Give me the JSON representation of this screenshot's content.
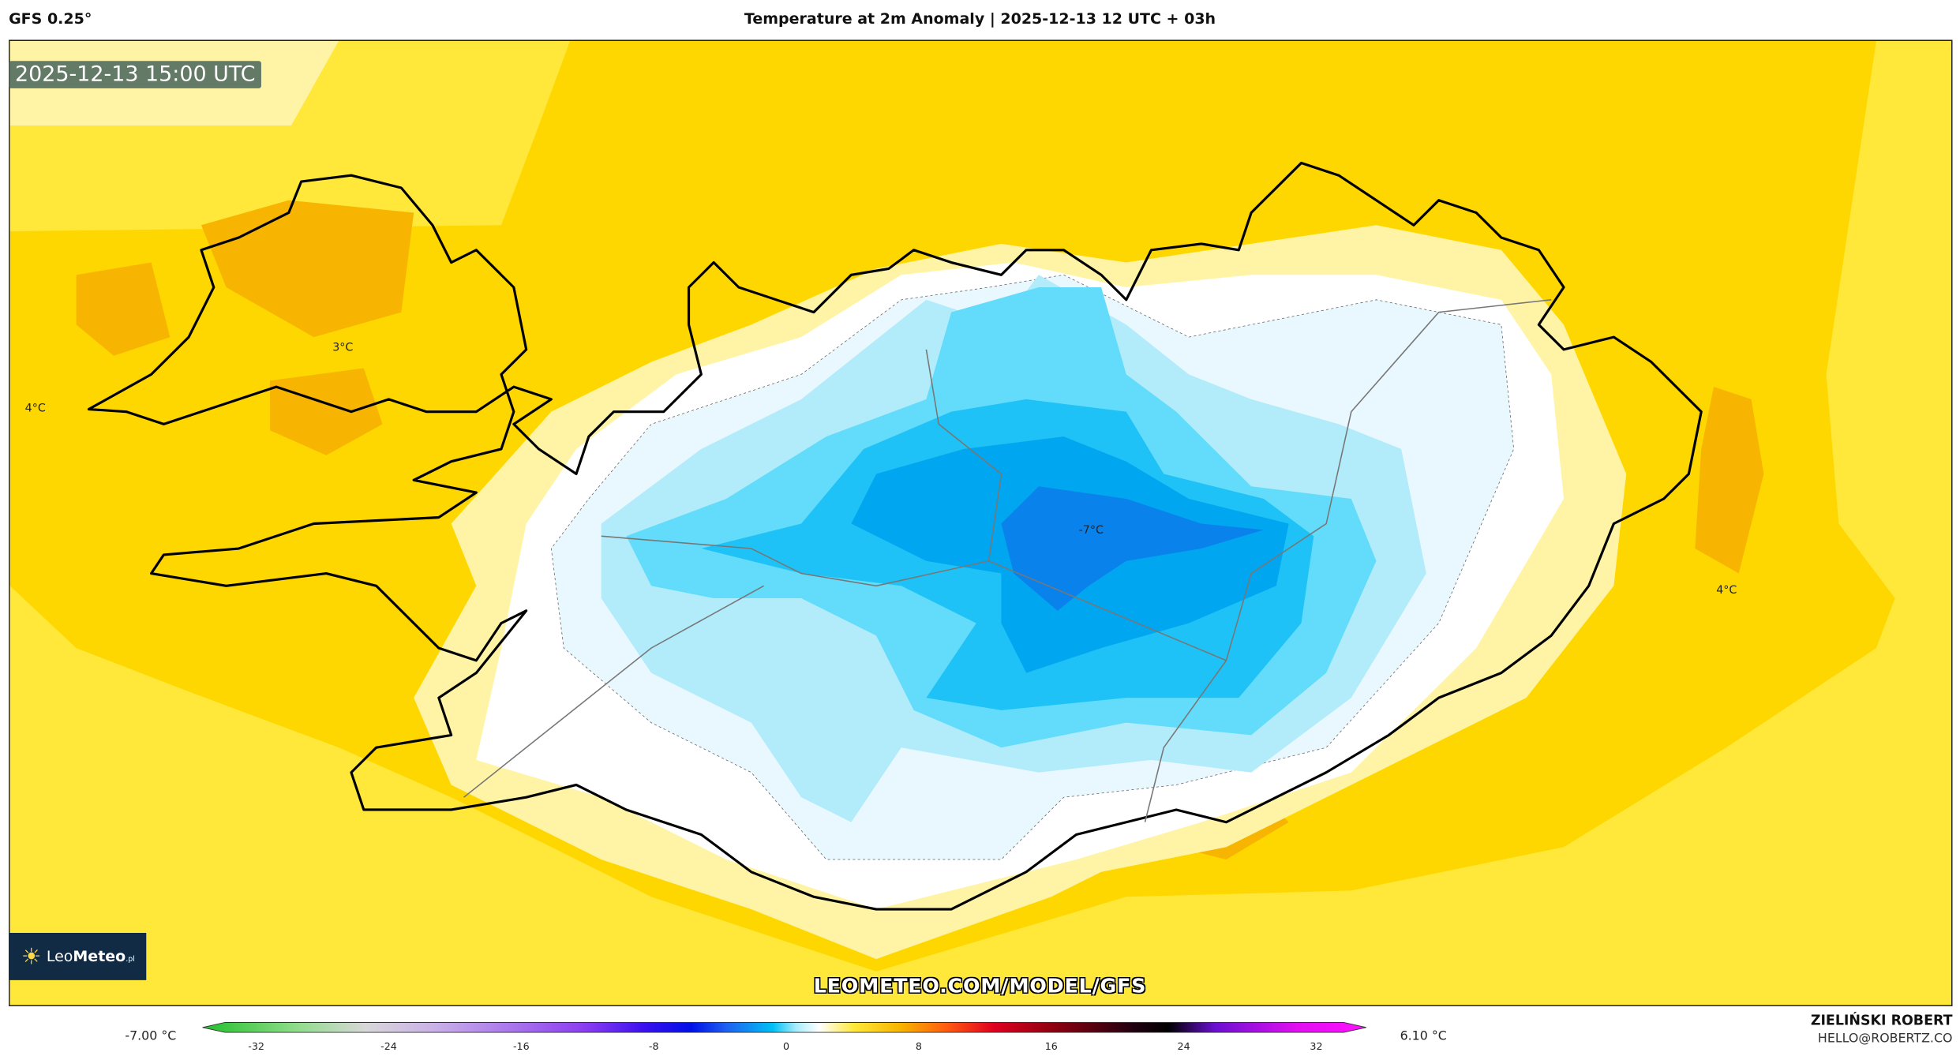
{
  "header": {
    "model": "GFS 0.25°",
    "title": "Temperature at 2m Anomaly | 2025-12-13 12 UTC + 03h"
  },
  "map": {
    "valid_time": "2025-12-13 15:00 UTC",
    "watermark": "LEOMETEO.COM/MODEL/GFS",
    "labels": [
      "3°C",
      "4°C",
      "-7°C",
      "4°C"
    ],
    "colors": {
      "deep_yellow": "#ffd700",
      "yellow": "#ffe83a",
      "pale_yellow": "#fff4a6",
      "white": "#ffffff",
      "pale_blue": "#e8f8fe",
      "light_blue": "#b2ecfb",
      "cyan": "#62dcfa",
      "blue1": "#1ec2f6",
      "blue2": "#00a6f0",
      "blue3": "#0a82ec",
      "orange": "#f7b400"
    }
  },
  "logo": {
    "name": "LeoMeteo",
    "prefix": "Leo",
    "suffix": "Meteo",
    "tld": ".pl"
  },
  "colorbar": {
    "min_label": "-7.00 °C",
    "max_label": "6.10 °C",
    "ticks": [
      "-32",
      "-24",
      "-16",
      "-8",
      "0",
      "8",
      "16",
      "24",
      "32"
    ],
    "range": [
      -32,
      32
    ]
  },
  "credits": {
    "author": "ZIELIŃSKI ROBERT",
    "email": "HELLO@ROBERTZ.CO"
  }
}
